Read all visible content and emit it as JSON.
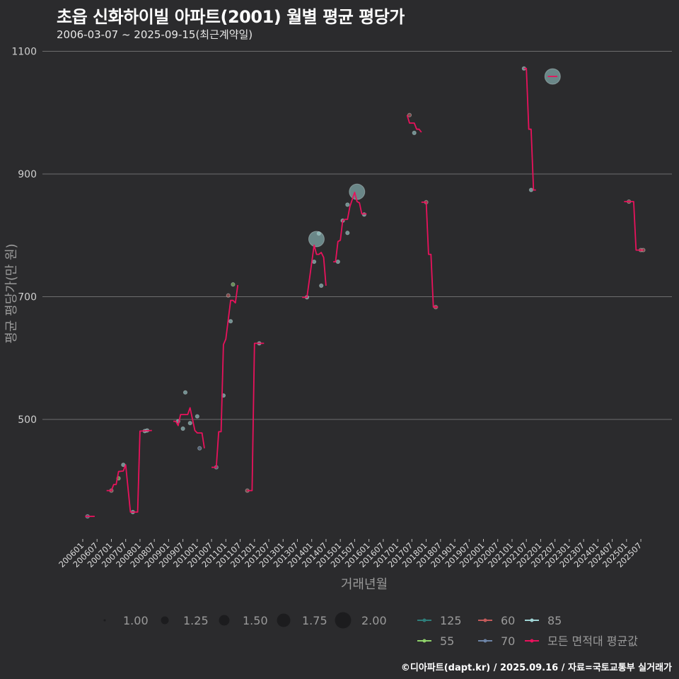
{
  "header": {
    "title": "초읍 신화하이빌 아파트(2001) 월별 평균 평당가",
    "subtitle": "2006-03-07 ~ 2025-09-15(최근계약일)"
  },
  "footer": "©디아파트(dapt.kr) / 2025.09.16 / 자료=국토교통부 실거래가",
  "chart_data": {
    "type": "line",
    "title": "초읍 신화하이빌 아파트(2001) 월별 평균 평당가",
    "xlabel": "거래년월",
    "ylabel": "평균 평당가(만 원)",
    "ylim": [
      300,
      1120
    ],
    "yticks": [
      500,
      700,
      900,
      1100
    ],
    "xticks": [
      "200601",
      "200607",
      "200701",
      "200707",
      "200801",
      "200807",
      "200901",
      "200907",
      "201001",
      "201007",
      "201101",
      "201107",
      "201201",
      "201207",
      "201301",
      "201307",
      "201401",
      "201407",
      "201501",
      "201507",
      "201601",
      "201607",
      "201701",
      "201707",
      "201801",
      "201807",
      "201901",
      "201907",
      "202001",
      "202007",
      "202101",
      "202107",
      "202201",
      "202207",
      "202301",
      "202307",
      "202401",
      "202407",
      "202501",
      "202507"
    ],
    "grid": true,
    "colors": {
      "125": "#2e7d7a",
      "60": "#c45a5a",
      "85": "#9fd4d4",
      "55": "#8fd16a",
      "70": "#6d84a6",
      "avg": "#e8125c"
    },
    "size_legend": {
      "labels": [
        "1.00",
        "1.25",
        "1.50",
        "1.75",
        "2.00"
      ],
      "values": [
        1,
        1.25,
        1.5,
        1.75,
        2
      ]
    },
    "color_legend": [
      {
        "key": "125",
        "label": "125"
      },
      {
        "key": "60",
        "label": "60"
      },
      {
        "key": "85",
        "label": "85"
      },
      {
        "key": "55",
        "label": "55"
      },
      {
        "key": "70",
        "label": "70"
      },
      {
        "key": "avg",
        "label": "모든 면적대 평균값"
      }
    ],
    "avg_segments": [
      [
        [
          "2006-02",
          342
        ],
        [
          "2006-06",
          342
        ]
      ],
      [
        [
          "2006-11",
          384
        ],
        [
          "2007-01",
          384
        ],
        [
          "2007-02",
          394
        ],
        [
          "2007-03",
          394
        ],
        [
          "2007-04",
          415
        ],
        [
          "2007-06",
          416
        ],
        [
          "2007-07",
          426
        ],
        [
          "2007-09",
          349
        ],
        [
          "2007-12",
          349
        ],
        [
          "2008-01",
          481
        ],
        [
          "2008-06",
          482
        ]
      ],
      [
        [
          "2009-03",
          497
        ],
        [
          "2009-04",
          497
        ],
        [
          "2009-05",
          490
        ],
        [
          "2009-06",
          508
        ],
        [
          "2009-09",
          508
        ],
        [
          "2009-10",
          519
        ],
        [
          "2009-12",
          482
        ],
        [
          "2010-01",
          478
        ],
        [
          "2010-03",
          478
        ],
        [
          "2010-04",
          453
        ]
      ],
      [
        [
          "2010-07",
          422
        ],
        [
          "2010-09",
          422
        ],
        [
          "2010-10",
          480
        ],
        [
          "2010-11",
          480
        ],
        [
          "2010-12",
          622
        ],
        [
          "2011-01",
          631
        ],
        [
          "2011-03",
          694
        ],
        [
          "2011-04",
          694
        ],
        [
          "2011-05",
          690
        ],
        [
          "2011-06",
          719
        ]
      ],
      [
        [
          "2011-10",
          384
        ],
        [
          "2011-12",
          384
        ],
        [
          "2012-01",
          624
        ],
        [
          "2012-05",
          624
        ]
      ],
      [
        [
          "2013-09",
          699
        ],
        [
          "2013-11",
          699
        ],
        [
          "2014-02",
          784
        ],
        [
          "2014-03",
          769
        ],
        [
          "2014-04",
          769
        ],
        [
          "2014-05",
          772
        ],
        [
          "2014-06",
          764
        ],
        [
          "2014-07",
          718
        ]
      ],
      [
        [
          "2014-10",
          757
        ],
        [
          "2014-11",
          757
        ],
        [
          "2014-12",
          790
        ],
        [
          "2015-01",
          792
        ],
        [
          "2015-02",
          824
        ],
        [
          "2015-03",
          826
        ],
        [
          "2015-04",
          826
        ],
        [
          "2015-05",
          847
        ],
        [
          "2015-07",
          870
        ],
        [
          "2015-08",
          855
        ],
        [
          "2015-09",
          853
        ],
        [
          "2015-10",
          835
        ],
        [
          "2015-12",
          835
        ]
      ],
      [
        [
          "2017-05",
          996
        ],
        [
          "2017-06",
          983
        ],
        [
          "2017-08",
          983
        ],
        [
          "2017-09",
          973
        ],
        [
          "2017-10",
          973
        ],
        [
          "2017-11",
          968
        ]
      ],
      [
        [
          "2017-11",
          854
        ],
        [
          "2018-01",
          854
        ],
        [
          "2018-02",
          769
        ],
        [
          "2018-03",
          769
        ],
        [
          "2018-04",
          683
        ],
        [
          "2018-06",
          683
        ]
      ],
      [
        [
          "2021-06",
          1072
        ],
        [
          "2021-07",
          1072
        ],
        [
          "2021-08",
          973
        ],
        [
          "2021-09",
          973
        ],
        [
          "2021-10",
          874
        ],
        [
          "2021-11",
          874
        ]
      ],
      [
        [
          "2022-04",
          1059
        ],
        [
          "2022-08",
          1059
        ]
      ],
      [
        [
          "2024-12",
          855
        ],
        [
          "2025-04",
          855
        ],
        [
          "2025-05",
          776
        ],
        [
          "2025-08",
          776
        ]
      ]
    ],
    "points": [
      {
        "x": "2006-03",
        "y": 342,
        "area": "70",
        "n": 1
      },
      {
        "x": "2007-01",
        "y": 384,
        "area": "60",
        "n": 1
      },
      {
        "x": "2007-04",
        "y": 404,
        "area": "55",
        "n": 1
      },
      {
        "x": "2007-06",
        "y": 426,
        "area": "85",
        "n": 1
      },
      {
        "x": "2007-10",
        "y": 349,
        "area": "85",
        "n": 1
      },
      {
        "x": "2008-03",
        "y": 481,
        "area": "85",
        "n": 1
      },
      {
        "x": "2008-04",
        "y": 482,
        "area": "85",
        "n": 1
      },
      {
        "x": "2009-05",
        "y": 497,
        "area": "85",
        "n": 1
      },
      {
        "x": "2009-08",
        "y": 544,
        "area": "85",
        "n": 1
      },
      {
        "x": "2009-07",
        "y": 485,
        "area": "85",
        "n": 1
      },
      {
        "x": "2009-10",
        "y": 494,
        "area": "85",
        "n": 1
      },
      {
        "x": "2010-01",
        "y": 505,
        "area": "85",
        "n": 1
      },
      {
        "x": "2010-02",
        "y": 453,
        "area": "70",
        "n": 1
      },
      {
        "x": "2010-09",
        "y": 422,
        "area": "70",
        "n": 1
      },
      {
        "x": "2010-12",
        "y": 539,
        "area": "85",
        "n": 1
      },
      {
        "x": "2011-03",
        "y": 660,
        "area": "85",
        "n": 1
      },
      {
        "x": "2011-02",
        "y": 702,
        "area": "60",
        "n": 1
      },
      {
        "x": "2011-04",
        "y": 720,
        "area": "55",
        "n": 1
      },
      {
        "x": "2011-10",
        "y": 384,
        "area": "60",
        "n": 1
      },
      {
        "x": "2012-03",
        "y": 624,
        "area": "85",
        "n": 1
      },
      {
        "x": "2013-11",
        "y": 699,
        "area": "85",
        "n": 1
      },
      {
        "x": "2014-02",
        "y": 757,
        "area": "85",
        "n": 1
      },
      {
        "x": "2014-04",
        "y": 803,
        "area": "85",
        "n": 1
      },
      {
        "x": "2014-05",
        "y": 718,
        "area": "85",
        "n": 1
      },
      {
        "x": "2014-03",
        "y": 794,
        "area": "85",
        "n": 2
      },
      {
        "x": "2014-12",
        "y": 757,
        "area": "85",
        "n": 1
      },
      {
        "x": "2015-02",
        "y": 824,
        "area": "85",
        "n": 1
      },
      {
        "x": "2015-04",
        "y": 804,
        "area": "85",
        "n": 1
      },
      {
        "x": "2015-04",
        "y": 850,
        "area": "85",
        "n": 1
      },
      {
        "x": "2015-08",
        "y": 871,
        "area": "85",
        "n": 2
      },
      {
        "x": "2015-11",
        "y": 834,
        "area": "85",
        "n": 1
      },
      {
        "x": "2017-06",
        "y": 996,
        "area": "60",
        "n": 1
      },
      {
        "x": "2017-08",
        "y": 967,
        "area": "85",
        "n": 1
      },
      {
        "x": "2018-01",
        "y": 854,
        "area": "60",
        "n": 1
      },
      {
        "x": "2018-05",
        "y": 683,
        "area": "60",
        "n": 1
      },
      {
        "x": "2021-06",
        "y": 1072,
        "area": "85",
        "n": 1
      },
      {
        "x": "2021-09",
        "y": 874,
        "area": "85",
        "n": 1
      },
      {
        "x": "2022-06",
        "y": 1059,
        "area": "85",
        "n": 2
      },
      {
        "x": "2025-02",
        "y": 855,
        "area": "60",
        "n": 1
      },
      {
        "x": "2025-07",
        "y": 776,
        "area": "60",
        "n": 1
      },
      {
        "x": "2025-08",
        "y": 776,
        "area": "60",
        "n": 1
      }
    ]
  }
}
